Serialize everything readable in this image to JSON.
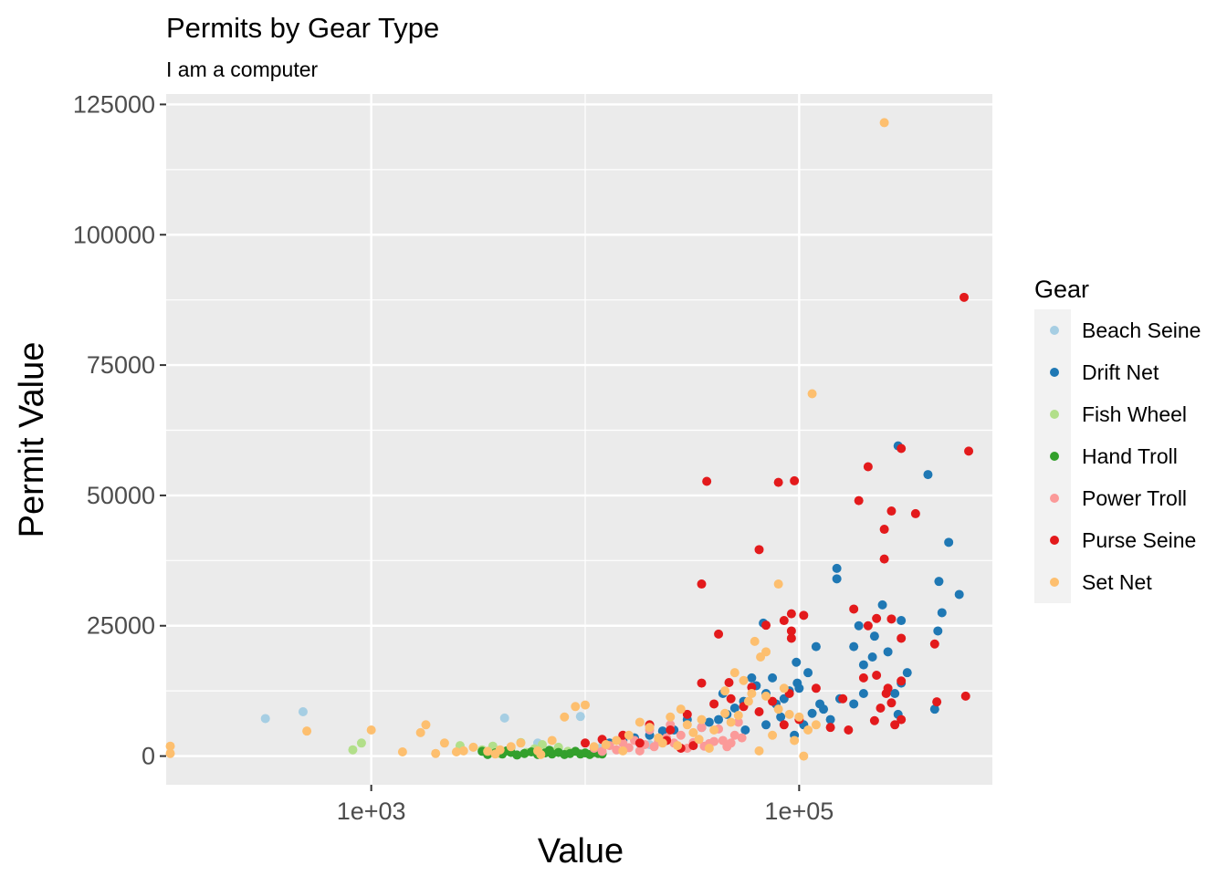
{
  "chart_data": {
    "type": "scatter",
    "title": "Permits by Gear Type",
    "subtitle": "I am a computer",
    "xlabel": "Value",
    "ylabel": "Permit Value",
    "x_scale": "log10",
    "xlim": [
      110,
      800000
    ],
    "ylim": [
      -5500,
      127000
    ],
    "x_ticks": [
      1000,
      100000
    ],
    "x_tick_labels": [
      "1e+03",
      "1e+05"
    ],
    "y_ticks": [
      0,
      25000,
      50000,
      75000,
      100000,
      125000
    ],
    "y_tick_labels": [
      "0",
      "25000",
      "50000",
      "75000",
      "100000",
      "125000"
    ],
    "grid": true,
    "legend_title": "Gear",
    "legend_position": "right",
    "series": [
      {
        "name": "Beach Seine",
        "color": "#a6cee3",
        "points": [
          [
            320,
            7200
          ],
          [
            480,
            8500
          ],
          [
            4200,
            7300
          ],
          [
            9500,
            7600
          ],
          [
            6000,
            2500
          ],
          [
            7500,
            1500
          ],
          [
            12000,
            1800
          ],
          [
            20000,
            2200
          ]
        ]
      },
      {
        "name": "Drift Net",
        "color": "#1f78b4",
        "points": [
          [
            290000,
            59500
          ],
          [
            400000,
            54000
          ],
          [
            500000,
            41000
          ],
          [
            450000,
            33500
          ],
          [
            560000,
            31000
          ],
          [
            465000,
            27500
          ],
          [
            445000,
            24000
          ],
          [
            430000,
            9000
          ],
          [
            245000,
            29000
          ],
          [
            190000,
            25000
          ],
          [
            150000,
            36000
          ],
          [
            150000,
            34000
          ],
          [
            120000,
            21000
          ],
          [
            97000,
            18000
          ],
          [
            110000,
            16000
          ],
          [
            180000,
            21000
          ],
          [
            200000,
            17500
          ],
          [
            220000,
            19000
          ],
          [
            260000,
            20000
          ],
          [
            225000,
            23000
          ],
          [
            320000,
            16000
          ],
          [
            300000,
            14000
          ],
          [
            280000,
            12000
          ],
          [
            200000,
            12000
          ],
          [
            180000,
            10000
          ],
          [
            155000,
            11000
          ],
          [
            130000,
            9000
          ],
          [
            115000,
            8200
          ],
          [
            98000,
            14000
          ],
          [
            90000,
            12500
          ],
          [
            85000,
            11000
          ],
          [
            78000,
            10000
          ],
          [
            70000,
            12000
          ],
          [
            63000,
            13500
          ],
          [
            60000,
            15000
          ],
          [
            55000,
            10500
          ],
          [
            50000,
            9200
          ],
          [
            46000,
            8000
          ],
          [
            42000,
            7000
          ],
          [
            38000,
            6500
          ],
          [
            35000,
            5500
          ],
          [
            30000,
            7000
          ],
          [
            26000,
            5000
          ],
          [
            23000,
            4800
          ],
          [
            20000,
            4000
          ],
          [
            17000,
            3500
          ],
          [
            15000,
            3000
          ],
          [
            13000,
            2500
          ],
          [
            44000,
            12000
          ],
          [
            75000,
            15000
          ],
          [
            100000,
            13000
          ],
          [
            125000,
            10000
          ],
          [
            290000,
            8000
          ],
          [
            70000,
            6000
          ],
          [
            56000,
            5000
          ],
          [
            95000,
            4000
          ],
          [
            82000,
            7500
          ],
          [
            105000,
            6000
          ],
          [
            140000,
            7000
          ],
          [
            300000,
            26000
          ],
          [
            68000,
            25500
          ]
        ]
      },
      {
        "name": "Fish Wheel",
        "color": "#b2df8a",
        "points": [
          [
            820,
            1200
          ],
          [
            900,
            2500
          ],
          [
            2600,
            2000
          ],
          [
            3300,
            1200
          ],
          [
            4500,
            1600
          ],
          [
            5300,
            700
          ],
          [
            5800,
            1400
          ],
          [
            6300,
            2200
          ],
          [
            6900,
            1000
          ],
          [
            7500,
            1700
          ],
          [
            8300,
            900
          ],
          [
            4000,
            500
          ],
          [
            3700,
            1900
          ],
          [
            5000,
            2600
          ],
          [
            6000,
            800
          ]
        ]
      },
      {
        "name": "Hand Troll",
        "color": "#33a02c",
        "points": [
          [
            3500,
            300
          ],
          [
            3800,
            600
          ],
          [
            4100,
            400
          ],
          [
            4500,
            700
          ],
          [
            4800,
            200
          ],
          [
            5200,
            500
          ],
          [
            5600,
            800
          ],
          [
            6000,
            300
          ],
          [
            6500,
            600
          ],
          [
            7000,
            400
          ],
          [
            7500,
            700
          ],
          [
            8000,
            300
          ],
          [
            8500,
            500
          ],
          [
            9000,
            900
          ],
          [
            9500,
            400
          ],
          [
            10000,
            600
          ],
          [
            10500,
            300
          ],
          [
            11000,
            700
          ],
          [
            11500,
            500
          ],
          [
            12000,
            400
          ],
          [
            3300,
            900
          ],
          [
            4300,
            1000
          ],
          [
            6800,
            1100
          ]
        ]
      },
      {
        "name": "Power Troll",
        "color": "#fb9a99",
        "points": [
          [
            11000,
            1500
          ],
          [
            12000,
            900
          ],
          [
            13000,
            2000
          ],
          [
            14000,
            1200
          ],
          [
            15000,
            2500
          ],
          [
            16000,
            1600
          ],
          [
            17000,
            3000
          ],
          [
            18000,
            1000
          ],
          [
            19000,
            2200
          ],
          [
            20000,
            5000
          ],
          [
            21000,
            1800
          ],
          [
            22000,
            2800
          ],
          [
            24000,
            3500
          ],
          [
            26000,
            2500
          ],
          [
            28000,
            4000
          ],
          [
            30000,
            1500
          ],
          [
            32000,
            2600
          ],
          [
            34000,
            3200
          ],
          [
            36000,
            1900
          ],
          [
            38000,
            2400
          ],
          [
            40000,
            2800
          ],
          [
            42000,
            5200
          ],
          [
            44000,
            3000
          ],
          [
            46000,
            1800
          ],
          [
            48000,
            2500
          ],
          [
            50000,
            4000
          ],
          [
            52000,
            6500
          ],
          [
            54000,
            3500
          ],
          [
            25000,
            6000
          ],
          [
            35000,
            5500
          ]
        ]
      },
      {
        "name": "Purse Seine",
        "color": "#e31a1c",
        "points": [
          [
            590000,
            88000
          ],
          [
            620000,
            58500
          ],
          [
            300000,
            59000
          ],
          [
            210000,
            55500
          ],
          [
            190000,
            49000
          ],
          [
            270000,
            47000
          ],
          [
            350000,
            46500
          ],
          [
            250000,
            43500
          ],
          [
            250000,
            37800
          ],
          [
            37000,
            52700
          ],
          [
            80000,
            52500
          ],
          [
            95000,
            52800
          ],
          [
            65000,
            39600
          ],
          [
            35000,
            33000
          ],
          [
            42000,
            23400
          ],
          [
            70000,
            25100
          ],
          [
            92000,
            27300
          ],
          [
            105000,
            27000
          ],
          [
            92000,
            22600
          ],
          [
            92000,
            24000
          ],
          [
            85000,
            26000
          ],
          [
            180000,
            28200
          ],
          [
            270000,
            26300
          ],
          [
            300000,
            22600
          ],
          [
            230000,
            26400
          ],
          [
            210000,
            25000
          ],
          [
            430000,
            21500
          ],
          [
            300000,
            14400
          ],
          [
            200000,
            15000
          ],
          [
            230000,
            15500
          ],
          [
            260000,
            13000
          ],
          [
            255000,
            12000
          ],
          [
            270000,
            10200
          ],
          [
            240000,
            9200
          ],
          [
            300000,
            7000
          ],
          [
            280000,
            6000
          ],
          [
            170000,
            5000
          ],
          [
            140000,
            5500
          ],
          [
            600000,
            11500
          ],
          [
            440000,
            10400
          ],
          [
            160000,
            11000
          ],
          [
            225000,
            6800
          ],
          [
            120000,
            13000
          ],
          [
            47000,
            14100
          ],
          [
            60000,
            13200
          ],
          [
            48000,
            11000
          ],
          [
            40000,
            10000
          ],
          [
            35000,
            14000
          ],
          [
            30000,
            8000
          ],
          [
            20000,
            6000
          ],
          [
            25000,
            5000
          ],
          [
            55000,
            9500
          ],
          [
            65000,
            8500
          ],
          [
            75000,
            10500
          ],
          [
            90000,
            12000
          ],
          [
            100000,
            7000
          ],
          [
            85000,
            6000
          ],
          [
            15000,
            4000
          ],
          [
            18000,
            2500
          ],
          [
            24000,
            3000
          ],
          [
            32000,
            2000
          ],
          [
            28000,
            1500
          ],
          [
            12000,
            3200
          ],
          [
            10000,
            2500
          ]
        ]
      },
      {
        "name": "Set Net",
        "color": "#fdbf6f",
        "points": [
          [
            250000,
            121500
          ],
          [
            115000,
            69500
          ],
          [
            80000,
            33000
          ],
          [
            120000,
            6000
          ],
          [
            70000,
            20000
          ],
          [
            66000,
            19000
          ],
          [
            62000,
            22000
          ],
          [
            50000,
            16000
          ],
          [
            55000,
            14500
          ],
          [
            45000,
            12500
          ],
          [
            60000,
            12000
          ],
          [
            58000,
            10500
          ],
          [
            70000,
            11500
          ],
          [
            80000,
            9000
          ],
          [
            90000,
            8000
          ],
          [
            100000,
            7500
          ],
          [
            110000,
            5000
          ],
          [
            95000,
            3000
          ],
          [
            105000,
            0
          ],
          [
            65000,
            1000
          ],
          [
            40000,
            5000
          ],
          [
            35000,
            7000
          ],
          [
            30000,
            6000
          ],
          [
            28000,
            9000
          ],
          [
            25000,
            7500
          ],
          [
            22000,
            3500
          ],
          [
            20000,
            5500
          ],
          [
            18000,
            6500
          ],
          [
            16000,
            4000
          ],
          [
            14000,
            3000
          ],
          [
            12500,
            2200
          ],
          [
            11000,
            1800
          ],
          [
            10000,
            9800
          ],
          [
            9000,
            9500
          ],
          [
            8000,
            7500
          ],
          [
            7000,
            3000
          ],
          [
            6000,
            1000
          ],
          [
            5000,
            2500
          ],
          [
            4500,
            1800
          ],
          [
            4000,
            1200
          ],
          [
            3500,
            900
          ],
          [
            3000,
            1700
          ],
          [
            2700,
            1000
          ],
          [
            2500,
            800
          ],
          [
            2200,
            2500
          ],
          [
            2000,
            500
          ],
          [
            1800,
            6000
          ],
          [
            1700,
            4500
          ],
          [
            1400,
            800
          ],
          [
            1000,
            5000
          ],
          [
            500,
            4800
          ],
          [
            115,
            1900
          ],
          [
            115,
            500
          ],
          [
            3800,
            400
          ],
          [
            6200,
            300
          ],
          [
            15000,
            1000
          ],
          [
            23000,
            2500
          ],
          [
            34000,
            3200
          ],
          [
            45000,
            8200
          ],
          [
            52000,
            7800
          ],
          [
            75000,
            4000
          ],
          [
            85000,
            13000
          ],
          [
            38000,
            1500
          ],
          [
            32000,
            4500
          ],
          [
            27000,
            2000
          ],
          [
            48000,
            6500
          ]
        ]
      }
    ]
  }
}
